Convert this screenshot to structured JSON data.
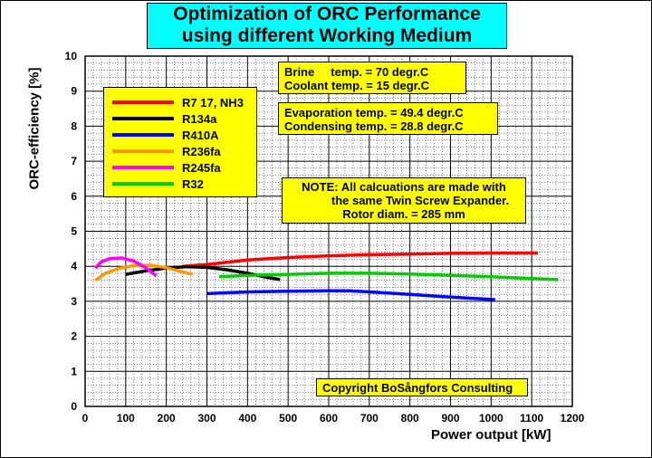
{
  "chart_data": {
    "type": "line",
    "title": [
      "Optimization of ORC Performance",
      "using different Working Medium"
    ],
    "xlabel": "Power output [kW]",
    "ylabel": "ORC-efficiency [%]",
    "xlim": [
      0,
      1200
    ],
    "ylim": [
      0,
      10
    ],
    "xticks": [
      0,
      100,
      200,
      300,
      400,
      500,
      600,
      700,
      800,
      900,
      1000,
      1100,
      1200
    ],
    "yticks": [
      0,
      1,
      2,
      3,
      4,
      5,
      6,
      7,
      8,
      9,
      10
    ],
    "grid": true,
    "legend_position": "top-left",
    "series": [
      {
        "name": "R7 17, NH3",
        "color": "#ff0000",
        "x": [
          240,
          300,
          400,
          500,
          600,
          700,
          800,
          900,
          1000,
          1115
        ],
        "y": [
          4.0,
          4.05,
          4.18,
          4.25,
          4.3,
          4.33,
          4.35,
          4.37,
          4.38,
          4.38
        ]
      },
      {
        "name": "R134a",
        "color": "#000000",
        "x": [
          100,
          150,
          200,
          250,
          300,
          350,
          400,
          450,
          480
        ],
        "y": [
          3.77,
          3.87,
          3.95,
          3.99,
          3.97,
          3.9,
          3.8,
          3.68,
          3.62
        ]
      },
      {
        "name": "R410A",
        "color": "#0000ff",
        "x": [
          300,
          400,
          500,
          600,
          650,
          700,
          800,
          900,
          1010
        ],
        "y": [
          3.22,
          3.27,
          3.29,
          3.3,
          3.3,
          3.27,
          3.2,
          3.12,
          3.05
        ]
      },
      {
        "name": "R236fa",
        "color": "#ff9900",
        "x": [
          25,
          50,
          80,
          120,
          160,
          200,
          230,
          265
        ],
        "y": [
          3.6,
          3.8,
          3.93,
          4.02,
          4.03,
          3.96,
          3.87,
          3.77
        ]
      },
      {
        "name": "R245fa",
        "color": "#ff00ff",
        "x": [
          25,
          40,
          60,
          90,
          120,
          150,
          175
        ],
        "y": [
          3.95,
          4.13,
          4.22,
          4.24,
          4.15,
          3.95,
          3.73
        ]
      },
      {
        "name": "R32",
        "color": "#00cc00",
        "x": [
          330,
          400,
          500,
          600,
          700,
          800,
          900,
          1000,
          1100,
          1165
        ],
        "y": [
          3.7,
          3.74,
          3.77,
          3.8,
          3.8,
          3.78,
          3.74,
          3.7,
          3.65,
          3.62
        ]
      }
    ],
    "annotations": {
      "conditions_1": [
        "Brine     temp. = 70 degr.C",
        "Coolant temp. = 15 degr.C"
      ],
      "conditions_2": [
        "Evaporation temp. = 49.4 degr.C",
        "Condensing temp. = 28.8 degr.C"
      ],
      "note": [
        "NOTE: All calcuations are made with",
        "the same Twin Screw Expander.",
        "Rotor diam. = 285 mm"
      ],
      "copyright": "Copyright  BoSångfors Consulting"
    }
  },
  "colors": {
    "title_box": "#00ffff",
    "annotation_box": "#ffff00",
    "grid": "#000000"
  }
}
